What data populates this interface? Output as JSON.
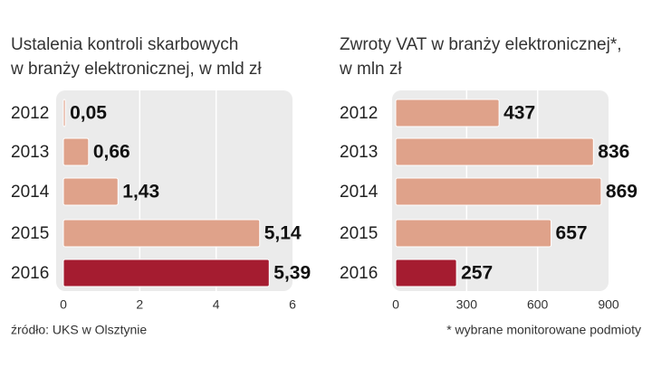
{
  "chart_data": [
    {
      "type": "bar",
      "orientation": "horizontal",
      "title": [
        "Ustalenia kontroli skarbowych",
        "w branży elektronicznej, w mld zł"
      ],
      "categories": [
        "2012",
        "2013",
        "2014",
        "2015",
        "2016"
      ],
      "values": [
        0.05,
        0.66,
        1.43,
        5.14,
        5.39
      ],
      "value_labels": [
        "0,05",
        "0,66",
        "1,43",
        "5,14",
        "5,39"
      ],
      "colors": [
        "#dfa28a",
        "#dfa28a",
        "#dfa28a",
        "#dfa28a",
        "#a51c30"
      ],
      "xlim": [
        0,
        6
      ],
      "xticks": [
        0,
        2,
        4,
        6
      ],
      "grid": true,
      "source": "źródło: UKS w Olsztynie"
    },
    {
      "type": "bar",
      "orientation": "horizontal",
      "title": [
        "Zwroty VAT w branży elektronicznej*,",
        "w mln zł"
      ],
      "categories": [
        "2012",
        "2013",
        "2014",
        "2015",
        "2016"
      ],
      "values": [
        437,
        836,
        869,
        657,
        257
      ],
      "colors": [
        "#dfa28a",
        "#dfa28a",
        "#dfa28a",
        "#dfa28a",
        "#a51c30"
      ],
      "xlim": [
        0,
        900
      ],
      "xticks": [
        0,
        300,
        600,
        900
      ],
      "grid": true,
      "note": "* wybrane monitorowane podmioty"
    }
  ]
}
